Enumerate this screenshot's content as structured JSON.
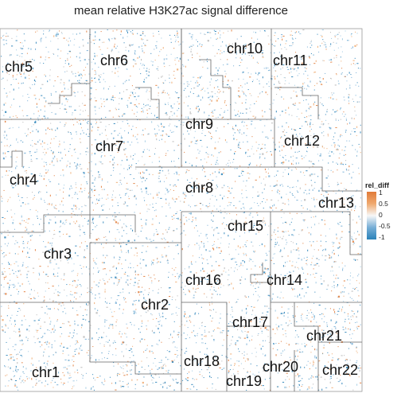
{
  "chart_data": {
    "type": "heatmap",
    "title": "mean relative H3K27ac signal difference",
    "legend": {
      "title": "rel_diff",
      "placement": "right",
      "ticks": [
        "1",
        "0.5",
        "0",
        "-0.5",
        "-1"
      ],
      "tick_values": [
        1,
        0.5,
        0,
        -0.5,
        -1
      ],
      "colors": {
        "high": "#e07b39",
        "mid_high": "#efa96e",
        "mid": "#f7f7f7",
        "mid_low": "#77aed6",
        "low": "#2a82b9"
      }
    },
    "regions": [
      "chr1",
      "chr2",
      "chr3",
      "chr4",
      "chr5",
      "chr6",
      "chr7",
      "chr8",
      "chr9",
      "chr10",
      "chr11",
      "chr12",
      "chr13",
      "chr14",
      "chr15",
      "chr16",
      "chr17",
      "chr18",
      "chr19",
      "chr20",
      "chr21",
      "chr22"
    ],
    "value_range": [
      -1,
      1
    ]
  }
}
